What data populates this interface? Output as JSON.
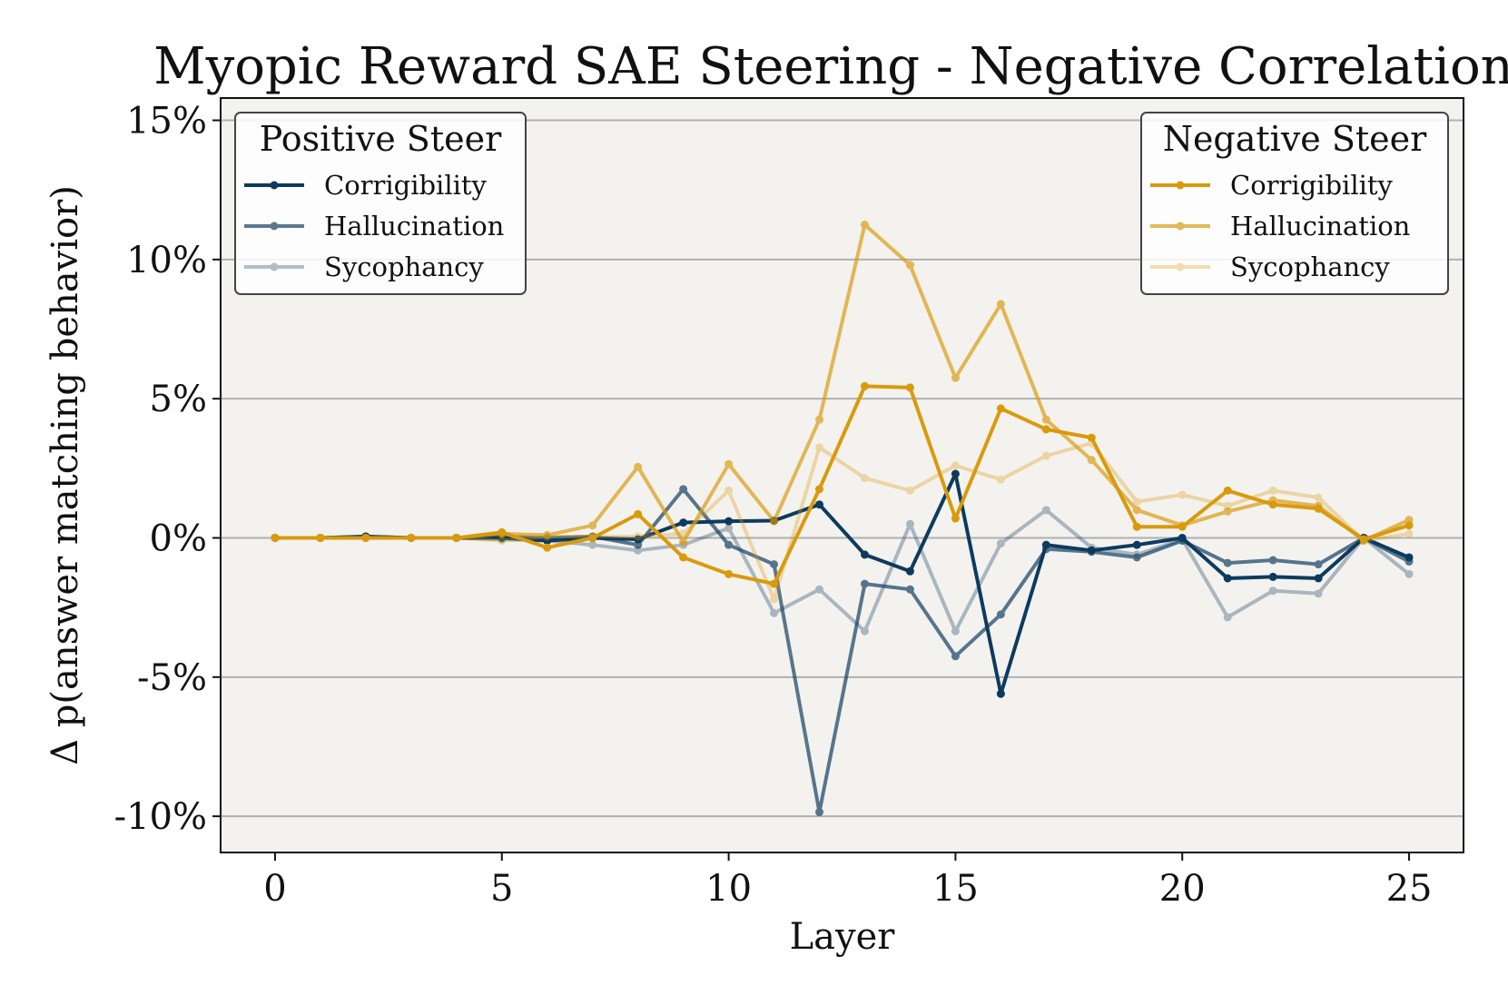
{
  "chart_data": {
    "type": "line",
    "title": "Myopic Reward SAE Steering - Negative Correlation",
    "xlabel": "Layer",
    "ylabel": "Δ p(answer matching behavior)",
    "xlim": [
      -1.2,
      26.2
    ],
    "ylim": [
      -11.3,
      15.8
    ],
    "x_ticks": [
      0,
      5,
      10,
      15,
      20,
      25
    ],
    "x_tick_labels": [
      "0",
      "5",
      "10",
      "15",
      "20",
      "25"
    ],
    "y_ticks": [
      -10,
      -5,
      0,
      5,
      10,
      15
    ],
    "y_tick_labels": [
      "-10%",
      "-5%",
      "0%",
      "5%",
      "10%",
      "15%"
    ],
    "grid": "horizontal",
    "x": [
      0,
      1,
      2,
      3,
      4,
      5,
      6,
      7,
      8,
      9,
      10,
      11,
      12,
      13,
      14,
      15,
      16,
      17,
      18,
      19,
      20,
      21,
      22,
      23,
      24,
      25
    ],
    "legends": [
      {
        "title": "Positive Steer",
        "placement": "upper-left",
        "entries": [
          "Corrigibility",
          "Hallucination",
          "Sycophancy"
        ]
      },
      {
        "title": "Negative Steer",
        "placement": "upper-right",
        "entries": [
          "Corrigibility",
          "Hallucination",
          "Sycophancy"
        ]
      }
    ],
    "series": [
      {
        "name": "Corrigibility",
        "group": "Positive Steer",
        "color": "#0d3b5e",
        "opacity": 1.0,
        "values": [
          0,
          0,
          0.05,
          0,
          0,
          0,
          -0.1,
          0,
          -0.05,
          0.55,
          0.6,
          0.62,
          1.2,
          -0.6,
          -1.2,
          2.3,
          -5.6,
          -0.25,
          -0.45,
          -0.25,
          0,
          -1.45,
          -1.4,
          -1.45,
          0,
          -0.7
        ]
      },
      {
        "name": "Hallucination",
        "group": "Positive Steer",
        "color": "#0d3b5e",
        "opacity": 0.68,
        "values": [
          0,
          0,
          0.05,
          0,
          0,
          0.05,
          0,
          0.05,
          -0.25,
          1.75,
          -0.25,
          -0.95,
          -9.85,
          -1.65,
          -1.85,
          -4.25,
          -2.75,
          -0.4,
          -0.5,
          -0.7,
          -0.1,
          -0.9,
          -0.8,
          -0.95,
          0,
          -0.85
        ]
      },
      {
        "name": "Sycophancy",
        "group": "Positive Steer",
        "color": "#0d3b5e",
        "opacity": 0.32,
        "values": [
          0,
          0,
          0,
          0,
          0,
          -0.05,
          -0.1,
          -0.25,
          -0.45,
          -0.25,
          0.35,
          -2.7,
          -1.85,
          -3.35,
          0.5,
          -3.35,
          -0.2,
          1.0,
          -0.35,
          -0.6,
          -0.05,
          -2.85,
          -1.9,
          -2.0,
          0,
          -1.3
        ]
      },
      {
        "name": "Corrigibility",
        "group": "Negative Steer",
        "color": "#d99a0b",
        "opacity": 1.0,
        "values": [
          0,
          0,
          0,
          0,
          0,
          0.2,
          -0.35,
          0,
          0.85,
          -0.7,
          -1.3,
          -1.65,
          1.75,
          5.45,
          5.4,
          0.7,
          4.65,
          3.9,
          3.6,
          0.4,
          0.4,
          1.7,
          1.2,
          1.05,
          -0.05,
          0.45
        ]
      },
      {
        "name": "Hallucination",
        "group": "Negative Steer",
        "color": "#d99a0b",
        "opacity": 0.68,
        "values": [
          0,
          0,
          0,
          0,
          0,
          0.15,
          0.1,
          0.45,
          2.55,
          -0.15,
          2.65,
          0.6,
          4.25,
          11.25,
          9.8,
          5.75,
          8.4,
          4.25,
          2.8,
          1.0,
          0.45,
          0.95,
          1.35,
          1.15,
          -0.1,
          0.65
        ]
      },
      {
        "name": "Sycophancy",
        "group": "Negative Steer",
        "color": "#d99a0b",
        "opacity": 0.32,
        "values": [
          0,
          0,
          0,
          0,
          0,
          -0.1,
          0.05,
          0.05,
          0.05,
          0.15,
          1.7,
          -2.2,
          3.25,
          2.15,
          1.7,
          2.6,
          2.1,
          2.95,
          3.4,
          1.3,
          1.55,
          1.15,
          1.7,
          1.45,
          -0.1,
          0.15
        ]
      }
    ]
  }
}
